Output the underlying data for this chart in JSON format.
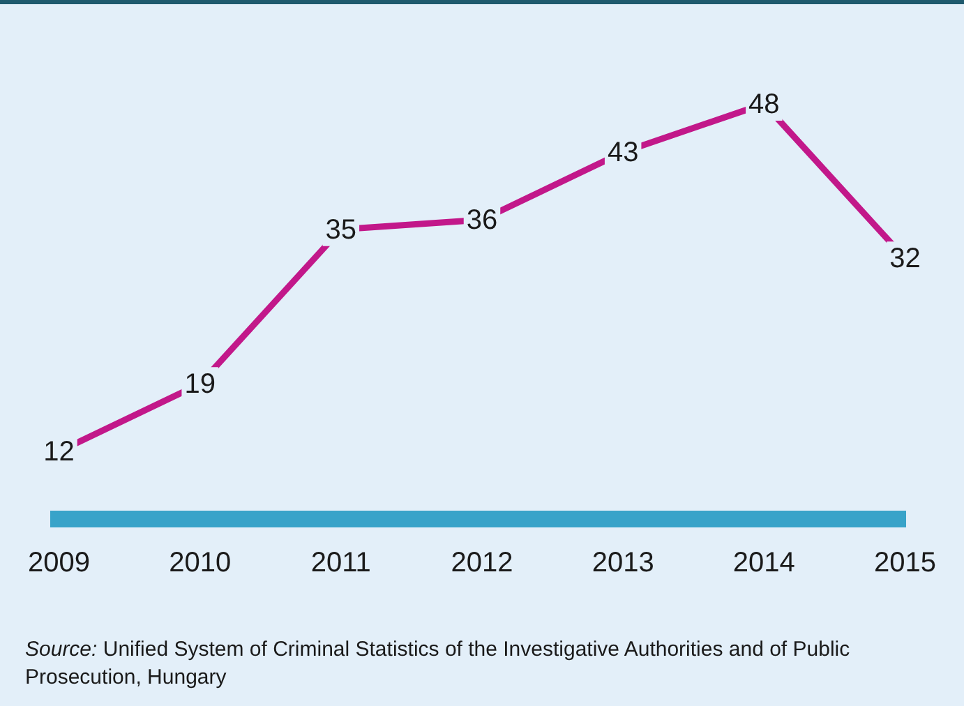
{
  "chart_data": {
    "type": "line",
    "categories": [
      "2009",
      "2010",
      "2011",
      "2012",
      "2013",
      "2014",
      "2015"
    ],
    "series": [
      {
        "color": "#c2188a",
        "values": [
          12,
          19,
          35,
          36,
          43,
          48,
          32
        ]
      }
    ],
    "data_labels": true,
    "grid": false,
    "legend": false,
    "marker": "none",
    "line_style": "solid",
    "annotations": [
      "Source: Unified System of Criminal Statistics of the Investigative Authorities and of Public Prosecution, Hungary"
    ]
  }
}
